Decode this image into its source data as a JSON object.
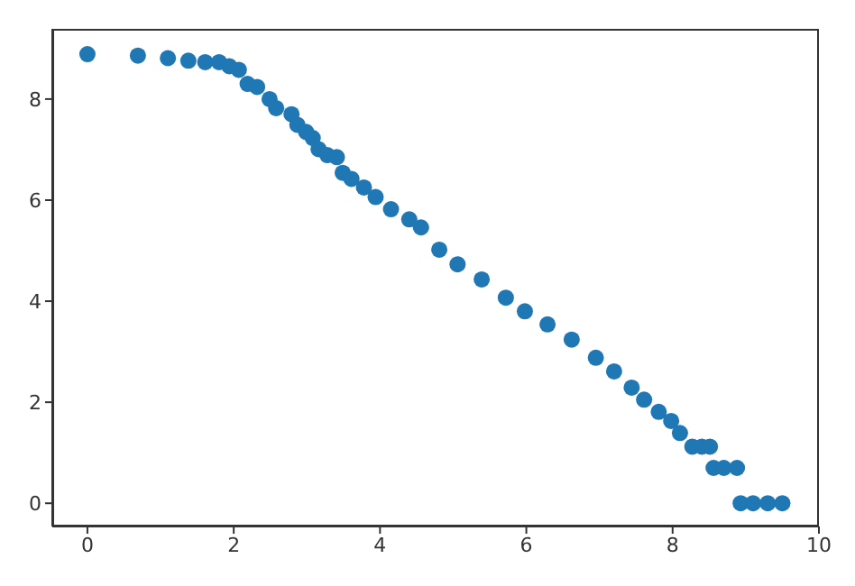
{
  "chart_data": {
    "type": "scatter",
    "color": "#1f77b4",
    "marker": "circle",
    "x": [
      0,
      0.69,
      1.1,
      1.38,
      1.61,
      1.8,
      1.94,
      2.07,
      2.19,
      2.32,
      2.49,
      2.58,
      2.79,
      2.87,
      2.99,
      3.08,
      3.16,
      3.28,
      3.41,
      3.49,
      3.61,
      3.78,
      3.94,
      4.15,
      4.4,
      4.56,
      4.81,
      5.06,
      5.39,
      5.72,
      5.98,
      6.29,
      6.62,
      6.95,
      7.2,
      7.44,
      7.61,
      7.81,
      7.98,
      8.1,
      8.27,
      8.4,
      8.51,
      8.56,
      8.7,
      8.88,
      8.93,
      9.1,
      9.3,
      9.5
    ],
    "values": [
      8.89,
      8.86,
      8.81,
      8.76,
      8.73,
      8.73,
      8.65,
      8.58,
      8.3,
      8.24,
      8.0,
      7.82,
      7.7,
      7.49,
      7.35,
      7.23,
      7.01,
      6.89,
      6.85,
      6.54,
      6.42,
      6.25,
      6.06,
      5.82,
      5.62,
      5.46,
      5.02,
      4.73,
      4.43,
      4.07,
      3.8,
      3.54,
      3.24,
      2.88,
      2.61,
      2.29,
      2.05,
      1.81,
      1.63,
      1.39,
      1.12,
      1.12,
      1.12,
      0.7,
      0.7,
      0.7,
      0,
      0,
      0,
      0
    ],
    "xlim": [
      -0.48,
      10
    ],
    "ylim": [
      -0.46,
      9.39
    ],
    "xticks": [
      0,
      2,
      4,
      6,
      8,
      10
    ],
    "yticks": [
      0,
      2,
      4,
      6,
      8
    ]
  }
}
